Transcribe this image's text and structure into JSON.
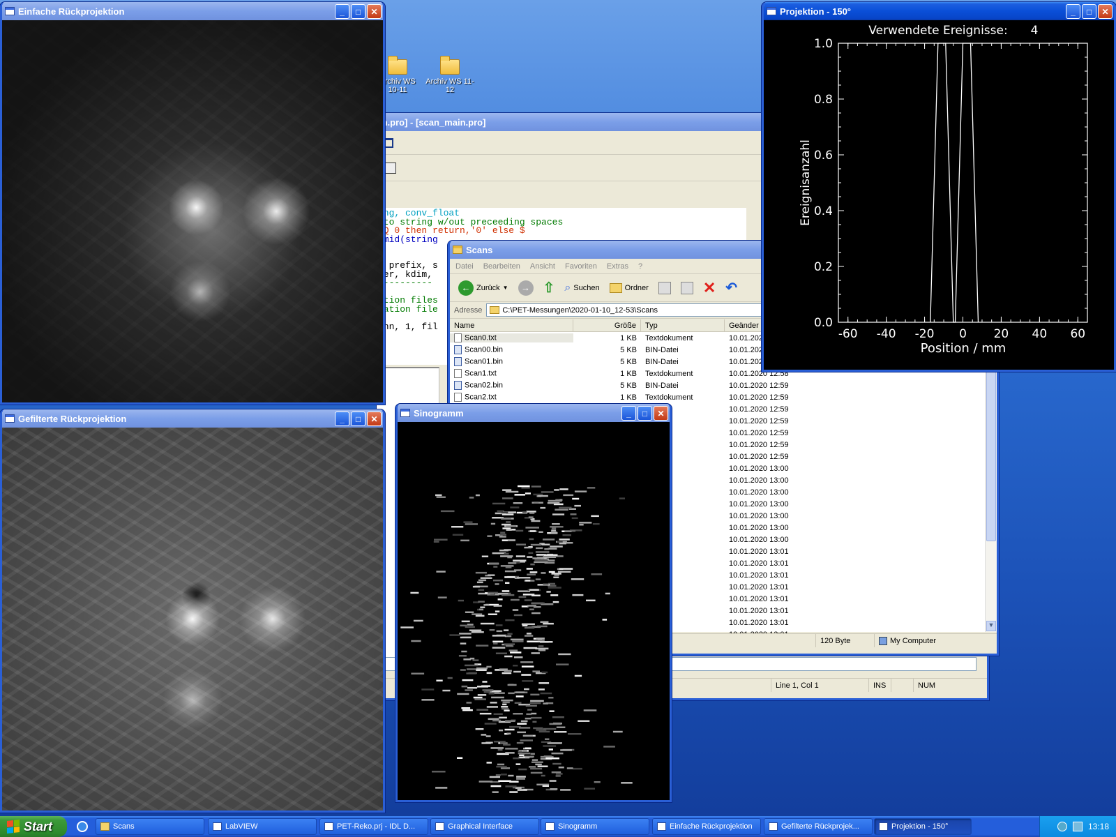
{
  "desktop": {
    "icons": [
      {
        "label": "Archiv WS 10-11"
      },
      {
        "label": "Archiv WS 11-12"
      }
    ]
  },
  "idle_window": {
    "title": "in.pro] - [scan_main.pro]",
    "code_lines": [
      "ing, conv_float",
      " to string w/out preceeding spaces",
      "EQ 0 then return,'0' else $",
      "rmid(string",
      "",
      "",
      ", prefix, s",
      "ter, kdim,",
      "----------",
      "",
      "ation files",
      "ration file",
      "",
      "onn, 1, fil"
    ],
    "status": {
      "position": "Line 1, Col 1",
      "ins": "INS",
      "num": "NUM"
    }
  },
  "scans_window": {
    "title": "Scans",
    "menu": [
      "Datei",
      "Bearbeiten",
      "Ansicht",
      "Favoriten",
      "Extras",
      "?"
    ],
    "toolbar": {
      "back": "Zurück",
      "search": "Suchen",
      "folders": "Ordner"
    },
    "address_label": "Adresse",
    "address": "C:\\PET-Messungen\\2020-01-10_12-53\\Scans",
    "columns": [
      "Name",
      "Größe",
      "Typ",
      "Geänder"
    ],
    "files": [
      {
        "name": "Scan0.txt",
        "size": "1 KB",
        "type": "Textdokument",
        "date": "10.01.202",
        "icon": "text"
      },
      {
        "name": "Scan00.bin",
        "size": "5 KB",
        "type": "BIN-Datei",
        "date": "10.01.202",
        "icon": "bin"
      },
      {
        "name": "Scan01.bin",
        "size": "5 KB",
        "type": "BIN-Datei",
        "date": "10.01.202",
        "icon": "bin"
      },
      {
        "name": "Scan1.txt",
        "size": "1 KB",
        "type": "Textdokument",
        "date": "10.01.2020 12:58",
        "icon": "text"
      },
      {
        "name": "Scan02.bin",
        "size": "5 KB",
        "type": "BIN-Datei",
        "date": "10.01.2020 12:59",
        "icon": "bin"
      },
      {
        "name": "Scan2.txt",
        "size": "1 KB",
        "type": "Textdokument",
        "date": "10.01.2020 12:59",
        "icon": "text"
      }
    ],
    "hidden_rows": [
      {
        "type": "ei",
        "date": "10.01.2020 12:59"
      },
      {
        "type": "kument",
        "date": "10.01.2020 12:59"
      },
      {
        "type": "ei",
        "date": "10.01.2020 12:59"
      },
      {
        "type": "kument",
        "date": "10.01.2020 12:59"
      },
      {
        "type": "ei",
        "date": "10.01.2020 12:59"
      },
      {
        "type": "kument",
        "date": "10.01.2020 13:00"
      },
      {
        "type": "ei",
        "date": "10.01.2020 13:00"
      },
      {
        "type": "kument",
        "date": "10.01.2020 13:00"
      },
      {
        "type": "ei",
        "date": "10.01.2020 13:00"
      },
      {
        "type": "kument",
        "date": "10.01.2020 13:00"
      },
      {
        "type": "ei",
        "date": "10.01.2020 13:00"
      },
      {
        "type": "kument",
        "date": "10.01.2020 13:00"
      },
      {
        "type": "ei",
        "date": "10.01.2020 13:01"
      },
      {
        "type": "kument",
        "date": "10.01.2020 13:01"
      },
      {
        "type": "ei",
        "date": "10.01.2020 13:01"
      },
      {
        "type": "kument",
        "date": "10.01.2020 13:01"
      },
      {
        "type": "ei",
        "date": "10.01.2020 13:01"
      },
      {
        "type": "kument",
        "date": "10.01.2020 13:01"
      },
      {
        "type": "ei",
        "date": "10.01.2020 13:01"
      },
      {
        "type": "kument",
        "date": "10.01.2020 13:01"
      }
    ],
    "status": {
      "left": "yte",
      "size": "120 Byte",
      "zone": "My Computer"
    }
  },
  "windows": {
    "einfach": {
      "title": "Einfache Rückprojektion"
    },
    "gefiltert": {
      "title": "Gefilterte Rückprojektion"
    },
    "sinogramm": {
      "title": "Sinogramm"
    },
    "projektion": {
      "title": "Projektion - 150°"
    }
  },
  "chart_data": {
    "type": "line",
    "title": "Verwendete Ereignisse:",
    "title_value": "4",
    "xlabel": "Position / mm",
    "ylabel": "Ereignisanzahl",
    "xlim": [
      -65,
      65
    ],
    "ylim": [
      0,
      1
    ],
    "xticks": [
      -60,
      -40,
      -20,
      0,
      20,
      40,
      60
    ],
    "yticks": [
      0.0,
      0.2,
      0.4,
      0.6,
      0.8,
      1.0
    ],
    "series": [
      {
        "x": [
          -17,
          -13,
          -9,
          -5,
          -4,
          0,
          4,
          8
        ],
        "y": [
          0,
          1,
          1,
          0,
          0,
          1,
          1,
          0
        ]
      }
    ]
  },
  "taskbar": {
    "start": "Start",
    "tasks": [
      {
        "label": "Scans",
        "icon": "folder"
      },
      {
        "label": "LabVIEW",
        "icon": "app"
      },
      {
        "label": "PET-Reko.prj - IDL D...",
        "icon": "app"
      },
      {
        "label": "Graphical Interface",
        "icon": "app"
      },
      {
        "label": "Sinogramm",
        "icon": "app"
      },
      {
        "label": "Einfache Rückprojektion",
        "icon": "app"
      },
      {
        "label": "Gefilterte Rückprojek...",
        "icon": "app"
      },
      {
        "label": "Projektion - 150°",
        "icon": "app"
      }
    ],
    "clock": "13:18"
  }
}
